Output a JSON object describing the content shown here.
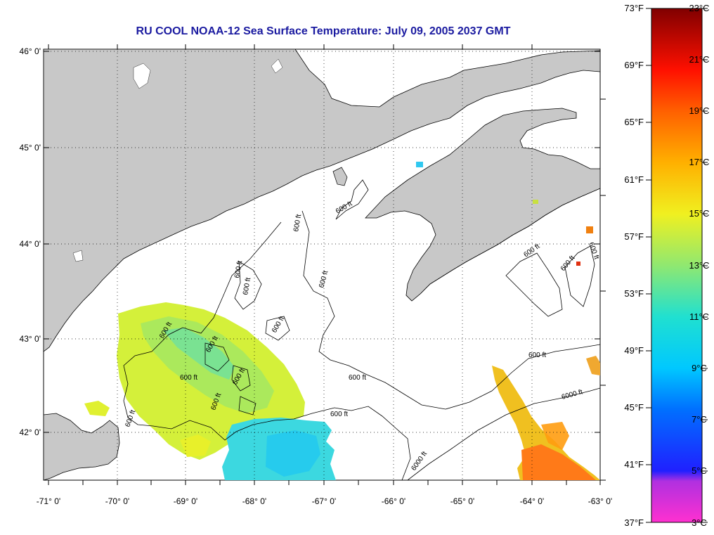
{
  "title": "RU COOL  NOAA-12  Sea Surface Temperature:  July 09, 2005 2037 GMT",
  "map": {
    "lon_labels": [
      "-71° 0'",
      "-70° 0'",
      "-69° 0'",
      "-68° 0'",
      "-67° 0'",
      "-66° 0'",
      "-65° 0'",
      "-64° 0'",
      "-63° 0'"
    ],
    "lat_labels": [
      "46° 0'",
      "45° 0'",
      "44° 0'",
      "43° 0'",
      "42° 0'"
    ],
    "contour_labels": [
      "600 ft",
      "600 ft",
      "600 ft",
      "600 ft",
      "600 ft",
      "600 ft",
      "600 ft",
      "600 ft",
      "600 ft",
      "600 ft",
      "600 ft",
      "600 ft",
      "600 ft",
      "600 ft",
      "600 ft",
      "600 ft",
      "600 ft",
      "600 ft",
      "6000 ft",
      "6000 ft"
    ],
    "land_color": "#c8c8c8",
    "grid_style": "dotted"
  },
  "colorbar": {
    "fahrenheit_labels": [
      "73°F",
      "69°F",
      "65°F",
      "61°F",
      "57°F",
      "53°F",
      "49°F",
      "45°F",
      "41°F",
      "37°F"
    ],
    "celsius_labels": [
      "23°C",
      "21°C",
      "19°C",
      "17°C",
      "15°C",
      "13°C",
      "11°C",
      "9°C",
      "7°C",
      "5°C",
      "3°C"
    ],
    "colors": [
      "#ff30d0",
      "#9030e0",
      "#0000ff",
      "#00a0ff",
      "#00e8e8",
      "#70e890",
      "#e8f020",
      "#ffb000",
      "#ff5000",
      "#ff0000",
      "#900000"
    ]
  }
}
